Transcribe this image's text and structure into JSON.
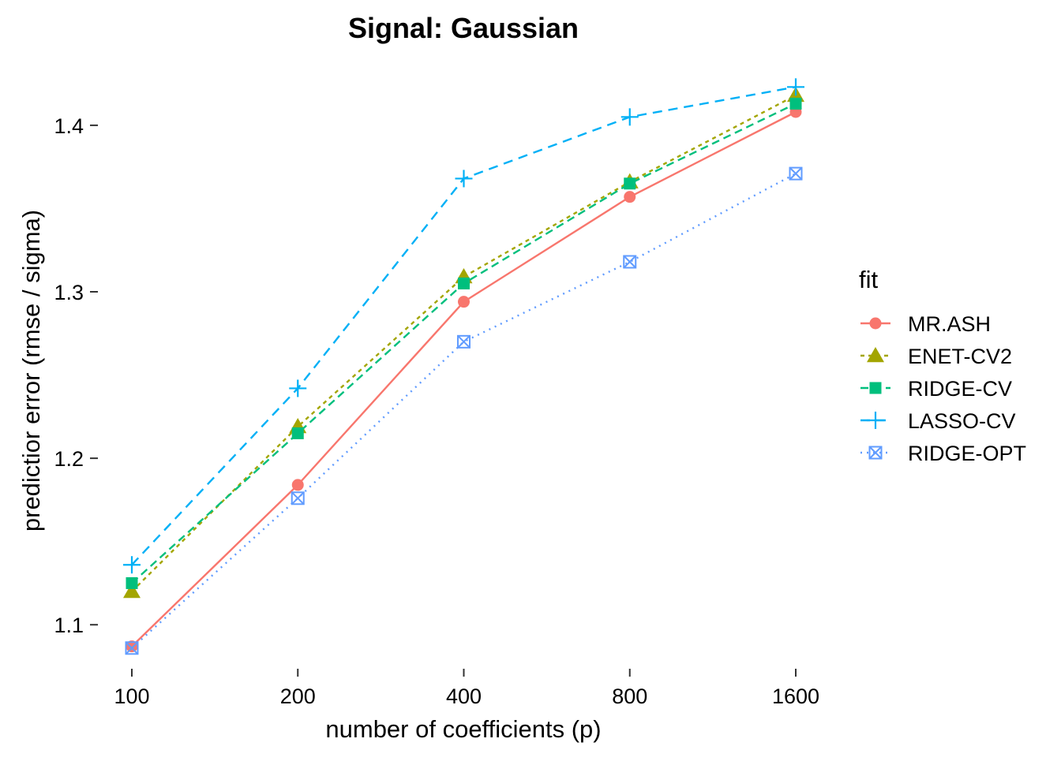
{
  "chart_data": {
    "type": "line",
    "title": "Signal: Gaussian",
    "xlabel": "number of coefficients (p)",
    "ylabel": "predictior error (rmse / sigma)",
    "x": [
      100,
      200,
      400,
      800,
      1600
    ],
    "x_tick_labels": [
      "100",
      "200",
      "400",
      "800",
      "1600"
    ],
    "x_scale": "log2",
    "y_ticks": [
      1.1,
      1.2,
      1.3,
      1.4
    ],
    "y_tick_labels": [
      "1.1",
      "1.2",
      "1.3",
      "1.4"
    ],
    "ylim": [
      1.075,
      1.435
    ],
    "grid": false,
    "legend": {
      "title": "fit",
      "position": "right"
    },
    "series": [
      {
        "name": "MR.ASH",
        "values": [
          1.087,
          1.184,
          1.294,
          1.357,
          1.408
        ],
        "color": "#F8766D",
        "marker": "circle",
        "dash": "solid"
      },
      {
        "name": "ENET-CV2",
        "values": [
          1.12,
          1.219,
          1.309,
          1.366,
          1.418
        ],
        "color": "#A3A500",
        "marker": "triangle",
        "dash": "short-dash"
      },
      {
        "name": "RIDGE-CV",
        "values": [
          1.125,
          1.215,
          1.305,
          1.365,
          1.413
        ],
        "color": "#00BF7D",
        "marker": "square",
        "dash": "dash"
      },
      {
        "name": "LASSO-CV",
        "values": [
          1.136,
          1.242,
          1.368,
          1.405,
          1.423
        ],
        "color": "#00B0F6",
        "marker": "plus",
        "dash": "long-dash"
      },
      {
        "name": "RIDGE-OPT",
        "values": [
          1.086,
          1.176,
          1.27,
          1.318,
          1.371
        ],
        "color": "#619CFF",
        "marker": "square-cross",
        "dash": "dotted"
      }
    ]
  }
}
